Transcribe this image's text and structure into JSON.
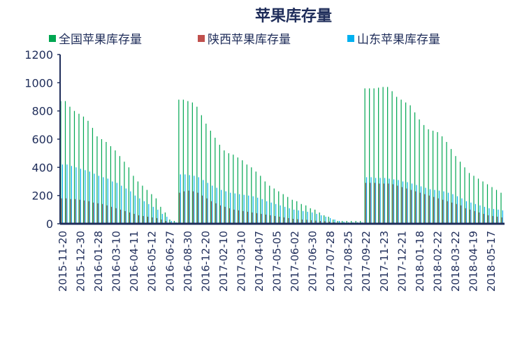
{
  "chart_data": {
    "type": "bar",
    "title": "苹果库存量",
    "xlabel": "",
    "ylabel": "",
    "ylim": [
      0,
      1200
    ],
    "yticks": [
      "0",
      "200",
      "400",
      "600",
      "800",
      "1000",
      "1200"
    ],
    "legend_position": "top",
    "grid": false,
    "tick_labels": [
      "2015-11-20",
      "2015-12-30",
      "2016-01-28",
      "2016-03-10",
      "2016-04-11",
      "2016-05-12",
      "2016-06-27",
      "2016-08-30",
      "2016-12-20",
      "2017-02-10",
      "2017-03-10",
      "2017-04-07",
      "2017-05-05",
      "2017-06-02",
      "2017-06-30",
      "2017-07-28",
      "2017-08-25",
      "2017-09-22",
      "2017-11-23",
      "2017-12-21",
      "2018-01-18",
      "2018-02-22",
      "2018-03-22",
      "2018-04-19",
      "2018-05-17"
    ],
    "series": [
      {
        "name": "全国苹果库存量",
        "color": "#00a651",
        "values": [
          870,
          870,
          830,
          800,
          780,
          760,
          730,
          680,
          620,
          600,
          580,
          550,
          520,
          480,
          440,
          400,
          340,
          300,
          270,
          240,
          210,
          180,
          120,
          80,
          30,
          20,
          880,
          880,
          870,
          860,
          830,
          770,
          710,
          660,
          610,
          560,
          520,
          500,
          490,
          470,
          450,
          420,
          400,
          370,
          340,
          300,
          270,
          250,
          230,
          210,
          190,
          170,
          160,
          140,
          130,
          110,
          100,
          80,
          60,
          50,
          30,
          20,
          20,
          20,
          20,
          20,
          20,
          960,
          960,
          960,
          965,
          970,
          970,
          940,
          900,
          880,
          860,
          840,
          790,
          740,
          700,
          670,
          660,
          650,
          620,
          580,
          530,
          480,
          440,
          400,
          360,
          340,
          320,
          300,
          280,
          260,
          240,
          220
        ]
      },
      {
        "name": "陕西苹果库存量",
        "color": "#c0504d",
        "values": [
          180,
          180,
          175,
          175,
          170,
          165,
          160,
          150,
          145,
          140,
          130,
          120,
          110,
          100,
          90,
          80,
          70,
          60,
          55,
          50,
          45,
          40,
          30,
          20,
          10,
          5,
          220,
          230,
          235,
          230,
          220,
          200,
          180,
          160,
          145,
          130,
          120,
          110,
          100,
          95,
          90,
          85,
          80,
          75,
          70,
          65,
          60,
          55,
          50,
          45,
          40,
          35,
          32,
          30,
          28,
          25,
          22,
          20,
          18,
          15,
          10,
          8,
          5,
          5,
          5,
          5,
          5,
          290,
          290,
          290,
          285,
          285,
          285,
          280,
          270,
          260,
          250,
          240,
          230,
          220,
          210,
          200,
          190,
          180,
          170,
          160,
          150,
          140,
          130,
          110,
          100,
          90,
          80,
          70,
          60,
          55,
          50,
          45
        ]
      },
      {
        "name": "山东苹果库存量",
        "color": "#00b0f0",
        "values": [
          420,
          420,
          410,
          400,
          390,
          380,
          370,
          355,
          340,
          330,
          320,
          300,
          290,
          270,
          250,
          230,
          200,
          180,
          160,
          140,
          120,
          100,
          70,
          50,
          20,
          10,
          350,
          350,
          345,
          340,
          330,
          310,
          290,
          270,
          255,
          240,
          230,
          220,
          215,
          210,
          205,
          200,
          195,
          185,
          175,
          160,
          150,
          140,
          130,
          120,
          110,
          100,
          95,
          90,
          85,
          80,
          70,
          60,
          50,
          40,
          30,
          20,
          15,
          10,
          10,
          10,
          10,
          330,
          330,
          325,
          325,
          325,
          320,
          315,
          310,
          300,
          295,
          285,
          275,
          265,
          255,
          245,
          240,
          235,
          230,
          220,
          210,
          195,
          180,
          160,
          150,
          140,
          130,
          120,
          110,
          105,
          100,
          95
        ]
      }
    ]
  }
}
